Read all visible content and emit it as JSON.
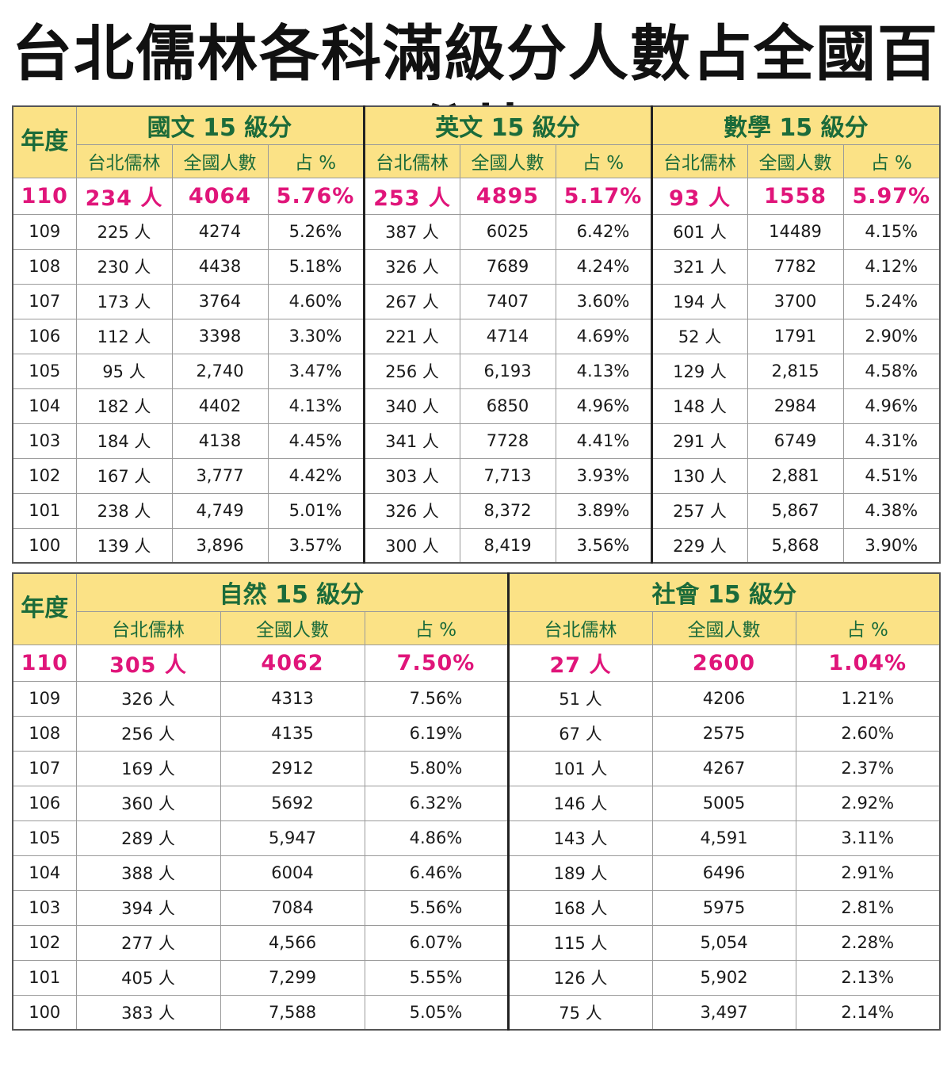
{
  "title": "台北儒林各科滿級分人數占全國百分比",
  "year_header": "年度",
  "col_labels": {
    "school": "台北儒林",
    "national": "全國人數",
    "pct": "占 %"
  },
  "colors": {
    "header_bg": "#fbe286",
    "header_text": "#1b6b3a",
    "highlight_text": "#e0157a"
  },
  "table1": {
    "subjects": [
      "國文 15 級分",
      "英文 15 級分",
      "數學 15 級分"
    ],
    "rows": [
      [
        "110",
        "234 人",
        "4064",
        "5.76%",
        "253 人",
        "4895",
        "5.17%",
        "93 人",
        "1558",
        "5.97%"
      ],
      [
        "109",
        "225 人",
        "4274",
        "5.26%",
        "387 人",
        "6025",
        "6.42%",
        "601 人",
        "14489",
        "4.15%"
      ],
      [
        "108",
        "230 人",
        "4438",
        "5.18%",
        "326 人",
        "7689",
        "4.24%",
        "321 人",
        "7782",
        "4.12%"
      ],
      [
        "107",
        "173 人",
        "3764",
        "4.60%",
        "267 人",
        "7407",
        "3.60%",
        "194 人",
        "3700",
        "5.24%"
      ],
      [
        "106",
        "112 人",
        "3398",
        "3.30%",
        "221 人",
        "4714",
        "4.69%",
        "52 人",
        "1791",
        "2.90%"
      ],
      [
        "105",
        "95 人",
        "2,740",
        "3.47%",
        "256 人",
        "6,193",
        "4.13%",
        "129 人",
        "2,815",
        "4.58%"
      ],
      [
        "104",
        "182 人",
        "4402",
        "4.13%",
        "340 人",
        "6850",
        "4.96%",
        "148 人",
        "2984",
        "4.96%"
      ],
      [
        "103",
        "184 人",
        "4138",
        "4.45%",
        "341 人",
        "7728",
        "4.41%",
        "291 人",
        "6749",
        "4.31%"
      ],
      [
        "102",
        "167 人",
        "3,777",
        "4.42%",
        "303 人",
        "7,713",
        "3.93%",
        "130 人",
        "2,881",
        "4.51%"
      ],
      [
        "101",
        "238 人",
        "4,749",
        "5.01%",
        "326 人",
        "8,372",
        "3.89%",
        "257 人",
        "5,867",
        "4.38%"
      ],
      [
        "100",
        "139 人",
        "3,896",
        "3.57%",
        "300 人",
        "8,419",
        "3.56%",
        "229 人",
        "5,868",
        "3.90%"
      ]
    ]
  },
  "table2": {
    "subjects": [
      "自然 15 級分",
      "社會 15 級分"
    ],
    "rows": [
      [
        "110",
        "305 人",
        "4062",
        "7.50%",
        "27 人",
        "2600",
        "1.04%"
      ],
      [
        "109",
        "326 人",
        "4313",
        "7.56%",
        "51 人",
        "4206",
        "1.21%"
      ],
      [
        "108",
        "256 人",
        "4135",
        "6.19%",
        "67 人",
        "2575",
        "2.60%"
      ],
      [
        "107",
        "169 人",
        "2912",
        "5.80%",
        "101 人",
        "4267",
        "2.37%"
      ],
      [
        "106",
        "360 人",
        "5692",
        "6.32%",
        "146 人",
        "5005",
        "2.92%"
      ],
      [
        "105",
        "289 人",
        "5,947",
        "4.86%",
        "143 人",
        "4,591",
        "3.11%"
      ],
      [
        "104",
        "388 人",
        "6004",
        "6.46%",
        "189 人",
        "6496",
        "2.91%"
      ],
      [
        "103",
        "394 人",
        "7084",
        "5.56%",
        "168 人",
        "5975",
        "2.81%"
      ],
      [
        "102",
        "277 人",
        "4,566",
        "6.07%",
        "115 人",
        "5,054",
        "2.28%"
      ],
      [
        "101",
        "405 人",
        "7,299",
        "5.55%",
        "126 人",
        "5,902",
        "2.13%"
      ],
      [
        "100",
        "383 人",
        "7,588",
        "5.05%",
        "75 人",
        "3,497",
        "2.14%"
      ]
    ]
  }
}
